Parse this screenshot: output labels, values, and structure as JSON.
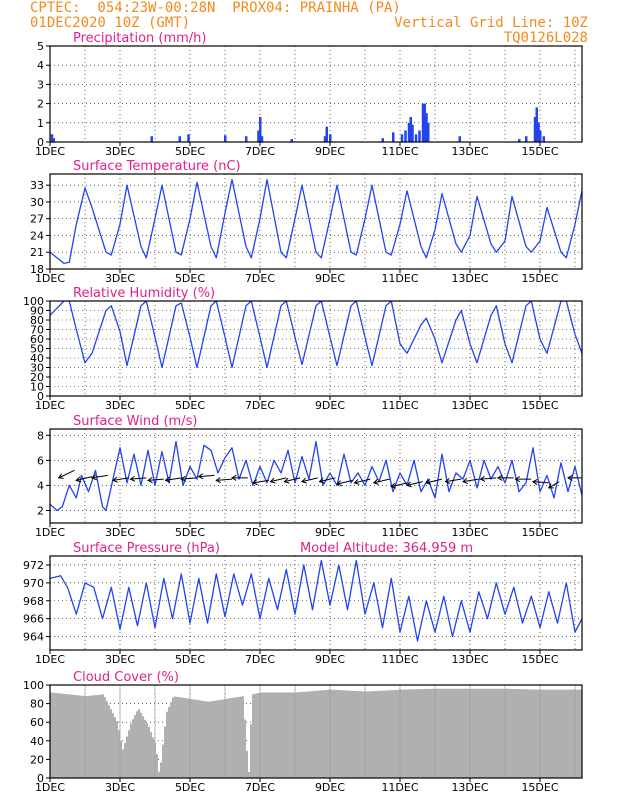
{
  "header": {
    "line1_left": "CPTEC:  054:23W-00:28N  PROX04: PRAINHA (PA)",
    "line2_left": "01DEC2020 10Z (GMT)",
    "line2_right": "Vertical Grid Line: 10Z",
    "line3_right": "TQ0126L028"
  },
  "colors": {
    "header": "#f08a1e",
    "title": "#e0218a",
    "series": "#2244ee",
    "cloud": "#b0b0b0",
    "day_line": "#999999"
  },
  "chart_data": [
    {
      "type": "bar",
      "title": "Precipitation (mm/h)",
      "ylim": [
        0,
        5
      ],
      "yticks": [
        0,
        1,
        2,
        3,
        4,
        5
      ],
      "xticks": [
        "1DEC",
        "3DEC",
        "5DEC",
        "7DEC",
        "9DEC",
        "11DEC",
        "13DEC",
        "15DEC"
      ],
      "x_unit": "day",
      "x_range": [
        1,
        16.2
      ],
      "bars": [
        {
          "x": 1.05,
          "v": 0.4
        },
        {
          "x": 1.1,
          "v": 0.2
        },
        {
          "x": 3.9,
          "v": 0.3
        },
        {
          "x": 4.7,
          "v": 0.3
        },
        {
          "x": 4.95,
          "v": 0.4
        },
        {
          "x": 6.0,
          "v": 0.35
        },
        {
          "x": 6.6,
          "v": 0.3
        },
        {
          "x": 6.95,
          "v": 0.6
        },
        {
          "x": 7.0,
          "v": 1.3
        },
        {
          "x": 7.05,
          "v": 0.3
        },
        {
          "x": 7.9,
          "v": 0.15
        },
        {
          "x": 8.85,
          "v": 0.3
        },
        {
          "x": 8.9,
          "v": 0.8
        },
        {
          "x": 9.0,
          "v": 0.4
        },
        {
          "x": 10.5,
          "v": 0.2
        },
        {
          "x": 10.8,
          "v": 0.5
        },
        {
          "x": 11.05,
          "v": 0.4
        },
        {
          "x": 11.15,
          "v": 0.6
        },
        {
          "x": 11.25,
          "v": 1.0
        },
        {
          "x": 11.3,
          "v": 1.3
        },
        {
          "x": 11.35,
          "v": 0.9
        },
        {
          "x": 11.45,
          "v": 0.4
        },
        {
          "x": 11.55,
          "v": 0.6
        },
        {
          "x": 11.65,
          "v": 2.0
        },
        {
          "x": 11.7,
          "v": 2.0
        },
        {
          "x": 11.75,
          "v": 1.5
        },
        {
          "x": 11.8,
          "v": 1.0
        },
        {
          "x": 12.7,
          "v": 0.3
        },
        {
          "x": 14.4,
          "v": 0.15
        },
        {
          "x": 14.6,
          "v": 0.3
        },
        {
          "x": 14.85,
          "v": 1.3
        },
        {
          "x": 14.9,
          "v": 1.8
        },
        {
          "x": 14.95,
          "v": 1.0
        },
        {
          "x": 15.0,
          "v": 0.6
        },
        {
          "x": 15.1,
          "v": 0.3
        }
      ]
    },
    {
      "type": "line",
      "title": "Surface Temperature (nC)",
      "ylim": [
        18,
        35
      ],
      "yticks": [
        18,
        21,
        24,
        27,
        30,
        33
      ],
      "xticks": [
        "1DEC",
        "3DEC",
        "5DEC",
        "7DEC",
        "9DEC",
        "11DEC",
        "13DEC",
        "15DEC"
      ],
      "x_unit": "day",
      "x_range": [
        1,
        16.2
      ],
      "x": [
        1.0,
        1.4,
        1.55,
        1.75,
        2.0,
        2.2,
        2.6,
        2.75,
        3.0,
        3.2,
        3.6,
        3.75,
        4.0,
        4.2,
        4.6,
        4.75,
        5.0,
        5.2,
        5.6,
        5.75,
        6.0,
        6.2,
        6.6,
        6.75,
        7.0,
        7.2,
        7.6,
        7.75,
        8.0,
        8.2,
        8.6,
        8.75,
        9.0,
        9.2,
        9.6,
        9.75,
        10.0,
        10.2,
        10.6,
        10.75,
        11.0,
        11.2,
        11.6,
        11.75,
        12.0,
        12.2,
        12.6,
        12.75,
        13.0,
        13.2,
        13.6,
        13.75,
        14.0,
        14.2,
        14.6,
        14.75,
        15.0,
        15.2,
        15.6,
        15.75,
        16.0,
        16.2
      ],
      "y": [
        21,
        19,
        19.2,
        26,
        32.5,
        29,
        21,
        20.5,
        26,
        33,
        22,
        20,
        27,
        33,
        21,
        20.5,
        27,
        33.5,
        22,
        20,
        28,
        34,
        22,
        20,
        27,
        34,
        21,
        20,
        27,
        33,
        21,
        20,
        27,
        33,
        21,
        20.5,
        27,
        33,
        21,
        20.5,
        26,
        32,
        22,
        20,
        25,
        31.5,
        22.5,
        21,
        24,
        31,
        22.5,
        21,
        23,
        31,
        22,
        21,
        23,
        29,
        21,
        20,
        26,
        32
      ]
    },
    {
      "type": "line",
      "title": "Relative Humidity (%)",
      "ylim": [
        0,
        100
      ],
      "yticks": [
        0,
        10,
        20,
        30,
        40,
        50,
        60,
        70,
        80,
        90,
        100
      ],
      "xticks": [
        "1DEC",
        "3DEC",
        "5DEC",
        "7DEC",
        "9DEC",
        "11DEC",
        "13DEC",
        "15DEC"
      ],
      "x_unit": "day",
      "x_range": [
        1,
        16.2
      ],
      "x": [
        1.0,
        1.4,
        1.55,
        1.75,
        2.0,
        2.2,
        2.6,
        2.75,
        3.0,
        3.2,
        3.6,
        3.75,
        4.0,
        4.2,
        4.6,
        4.75,
        5.0,
        5.2,
        5.6,
        5.75,
        6.0,
        6.2,
        6.6,
        6.75,
        7.0,
        7.2,
        7.6,
        7.75,
        8.0,
        8.2,
        8.6,
        8.75,
        9.0,
        9.2,
        9.6,
        9.75,
        10.0,
        10.2,
        10.6,
        10.75,
        11.0,
        11.2,
        11.6,
        11.75,
        12.0,
        12.2,
        12.6,
        12.75,
        13.0,
        13.2,
        13.6,
        13.75,
        14.0,
        14.2,
        14.6,
        14.75,
        15.0,
        15.2,
        15.6,
        15.75,
        16.0,
        16.2
      ],
      "y": [
        85,
        100,
        100,
        70,
        35,
        45,
        90,
        95,
        68,
        32,
        95,
        100,
        62,
        30,
        95,
        98,
        62,
        30,
        95,
        100,
        62,
        30,
        95,
        100,
        62,
        30,
        95,
        100,
        62,
        33,
        95,
        100,
        62,
        32,
        95,
        100,
        62,
        32,
        95,
        100,
        55,
        45,
        75,
        82,
        60,
        35,
        80,
        90,
        55,
        35,
        85,
        95,
        55,
        35,
        95,
        100,
        60,
        45,
        100,
        100,
        65,
        45
      ]
    },
    {
      "type": "line",
      "title": "Surface Wind (m/s)",
      "ylim": [
        1,
        8.5
      ],
      "yticks": [
        2,
        4,
        6,
        8
      ],
      "xticks": [
        "1DEC",
        "3DEC",
        "5DEC",
        "7DEC",
        "9DEC",
        "11DEC",
        "13DEC",
        "15DEC"
      ],
      "x_unit": "day",
      "x_range": [
        1,
        16.2
      ],
      "x": [
        1.0,
        1.2,
        1.35,
        1.55,
        1.75,
        1.9,
        2.1,
        2.3,
        2.5,
        2.6,
        2.8,
        3.0,
        3.2,
        3.4,
        3.6,
        3.8,
        4.0,
        4.2,
        4.4,
        4.6,
        4.8,
        5.0,
        5.2,
        5.4,
        5.6,
        5.8,
        6.0,
        6.2,
        6.4,
        6.6,
        6.8,
        7.0,
        7.2,
        7.4,
        7.6,
        7.8,
        8.0,
        8.2,
        8.4,
        8.6,
        8.8,
        9.0,
        9.2,
        9.4,
        9.6,
        9.8,
        10.0,
        10.2,
        10.4,
        10.6,
        10.8,
        11.0,
        11.2,
        11.4,
        11.6,
        11.8,
        12.0,
        12.2,
        12.4,
        12.6,
        12.8,
        13.0,
        13.2,
        13.4,
        13.6,
        13.8,
        14.0,
        14.2,
        14.4,
        14.6,
        14.8,
        15.0,
        15.2,
        15.4,
        15.6,
        15.8,
        16.0,
        16.2
      ],
      "y": [
        2.5,
        2.0,
        2.3,
        4.0,
        3.0,
        4.8,
        3.5,
        5.2,
        2.3,
        2.0,
        4.5,
        7.0,
        4.2,
        6.5,
        4.0,
        6.8,
        4.0,
        6.7,
        4.2,
        7.5,
        4.0,
        5.5,
        4.5,
        7.2,
        6.8,
        5.0,
        6.2,
        7.0,
        4.5,
        6.0,
        4.0,
        5.5,
        4.2,
        6.0,
        5.0,
        6.8,
        4.2,
        6.3,
        4.5,
        7.5,
        4.0,
        5.0,
        4.0,
        6.5,
        4.2,
        5.0,
        4.0,
        5.5,
        4.3,
        6.0,
        3.5,
        5.0,
        4.0,
        6.0,
        3.5,
        4.5,
        3.0,
        6.5,
        3.5,
        5.0,
        4.5,
        6.0,
        3.8,
        6.0,
        4.5,
        5.5,
        4.2,
        6.0,
        3.5,
        4.2,
        7.0,
        3.5,
        4.8,
        3.0,
        5.8,
        3.5,
        5.5,
        3.2
      ],
      "arrows": [
        {
          "x": 1.25,
          "y": 4.6,
          "dx": 0.45,
          "dy": 0.6
        },
        {
          "x": 1.75,
          "y": 4.4,
          "dx": 0.45,
          "dy": 0.3
        },
        {
          "x": 2.2,
          "y": 4.6,
          "dx": 0.45,
          "dy": 0.2
        },
        {
          "x": 2.8,
          "y": 4.4,
          "dx": 0.45,
          "dy": 0.2
        },
        {
          "x": 3.3,
          "y": 4.5,
          "dx": 0.45,
          "dy": 0.1
        },
        {
          "x": 3.8,
          "y": 4.4,
          "dx": 0.45,
          "dy": 0.1
        },
        {
          "x": 4.3,
          "y": 4.4,
          "dx": 0.45,
          "dy": 0.2
        },
        {
          "x": 4.75,
          "y": 4.5,
          "dx": 0.45,
          "dy": 0.1
        },
        {
          "x": 5.25,
          "y": 4.7,
          "dx": 0.45,
          "dy": 0.1
        },
        {
          "x": 5.75,
          "y": 4.4,
          "dx": 0.45,
          "dy": 0.1
        },
        {
          "x": 6.2,
          "y": 4.6,
          "dx": 0.45,
          "dy": 0.0
        },
        {
          "x": 6.8,
          "y": 4.2,
          "dx": 0.45,
          "dy": 0.2
        },
        {
          "x": 7.3,
          "y": 4.3,
          "dx": 0.45,
          "dy": 0.3
        },
        {
          "x": 7.7,
          "y": 4.3,
          "dx": 0.45,
          "dy": 0.3
        },
        {
          "x": 8.2,
          "y": 4.3,
          "dx": 0.45,
          "dy": 0.3
        },
        {
          "x": 8.7,
          "y": 4.3,
          "dx": 0.45,
          "dy": 0.3
        },
        {
          "x": 9.2,
          "y": 4.1,
          "dx": 0.45,
          "dy": 0.3
        },
        {
          "x": 9.7,
          "y": 4.2,
          "dx": 0.45,
          "dy": 0.3
        },
        {
          "x": 10.25,
          "y": 4.2,
          "dx": 0.45,
          "dy": 0.3
        },
        {
          "x": 10.75,
          "y": 3.9,
          "dx": 0.45,
          "dy": 0.3
        },
        {
          "x": 11.2,
          "y": 4.0,
          "dx": 0.45,
          "dy": 0.3
        },
        {
          "x": 11.75,
          "y": 4.2,
          "dx": 0.45,
          "dy": 0.3
        },
        {
          "x": 12.3,
          "y": 4.3,
          "dx": 0.45,
          "dy": 0.2
        },
        {
          "x": 12.8,
          "y": 4.3,
          "dx": 0.45,
          "dy": 0.2
        },
        {
          "x": 13.3,
          "y": 4.5,
          "dx": 0.45,
          "dy": 0.1
        },
        {
          "x": 13.8,
          "y": 4.6,
          "dx": 0.45,
          "dy": 0.0
        },
        {
          "x": 14.3,
          "y": 4.5,
          "dx": 0.45,
          "dy": 0.0
        },
        {
          "x": 14.8,
          "y": 4.3,
          "dx": 0.45,
          "dy": -0.1
        },
        {
          "x": 15.25,
          "y": 3.8,
          "dx": 0.3,
          "dy": 0.5
        },
        {
          "x": 15.8,
          "y": 4.6,
          "dx": 0.45,
          "dy": 0.0
        }
      ]
    },
    {
      "type": "line",
      "title": "Surface Pressure (hPa)",
      "subtitle": "Model Altitude: 364.959 m",
      "ylim": [
        962.5,
        973
      ],
      "yticks": [
        964,
        966,
        968,
        970,
        972
      ],
      "xticks": [
        "1DEC",
        "3DEC",
        "5DEC",
        "7DEC",
        "9DEC",
        "11DEC",
        "13DEC",
        "15DEC"
      ],
      "x_unit": "day",
      "x_range": [
        1,
        16.2
      ],
      "x": [
        1.0,
        1.3,
        1.5,
        1.75,
        2.0,
        2.25,
        2.5,
        2.75,
        3.0,
        3.25,
        3.5,
        3.75,
        4.0,
        4.25,
        4.5,
        4.75,
        5.0,
        5.25,
        5.5,
        5.75,
        6.0,
        6.25,
        6.5,
        6.75,
        7.0,
        7.25,
        7.5,
        7.75,
        8.0,
        8.25,
        8.5,
        8.75,
        9.0,
        9.25,
        9.5,
        9.75,
        10.0,
        10.25,
        10.5,
        10.75,
        11.0,
        11.25,
        11.5,
        11.75,
        12.0,
        12.25,
        12.5,
        12.75,
        13.0,
        13.25,
        13.5,
        13.75,
        14.0,
        14.25,
        14.5,
        14.75,
        15.0,
        15.25,
        15.5,
        15.75,
        16.0,
        16.2
      ],
      "y": [
        970.5,
        970.8,
        969.5,
        966.5,
        970.0,
        969.5,
        966.0,
        969.5,
        964.8,
        969.5,
        965.2,
        970.0,
        965.0,
        970.5,
        966.0,
        971.0,
        965.5,
        970.5,
        965.5,
        971.0,
        966.2,
        971.0,
        967.5,
        971.0,
        966.0,
        970.5,
        967.0,
        971.5,
        966.5,
        972.0,
        967.0,
        972.5,
        967.5,
        972.0,
        967.0,
        972.5,
        966.5,
        970.0,
        965.0,
        970.5,
        964.5,
        968.5,
        963.5,
        968.0,
        964.5,
        968.5,
        964.0,
        968.0,
        964.5,
        969.0,
        966.0,
        970.0,
        966.5,
        969.5,
        965.5,
        968.5,
        965.0,
        969.0,
        965.5,
        970.0,
        964.5,
        966.0
      ]
    },
    {
      "type": "bar",
      "title": "Cloud Cover (%)",
      "ylim": [
        0,
        100
      ],
      "yticks": [
        0,
        20,
        40,
        60,
        80,
        100
      ],
      "xticks": [
        "1DEC",
        "3DEC",
        "5DEC",
        "7DEC",
        "9DEC",
        "11DEC",
        "13DEC",
        "15DEC"
      ],
      "x_unit": "day",
      "x_range": [
        1,
        16.2
      ],
      "profile_x": [
        1.0,
        1.5,
        2.0,
        2.5,
        2.9,
        3.05,
        3.3,
        3.5,
        3.8,
        4.0,
        4.1,
        4.3,
        4.5,
        5.0,
        5.5,
        6.0,
        6.5,
        6.65,
        6.75,
        7.0,
        8.0,
        9.0,
        10.0,
        11.0,
        12.0,
        13.0,
        14.0,
        15.0,
        16.2
      ],
      "profile_y": [
        92,
        90,
        88,
        90,
        60,
        30,
        60,
        75,
        55,
        35,
        2,
        70,
        88,
        85,
        82,
        85,
        88,
        0,
        90,
        92,
        92,
        95,
        93,
        95,
        96,
        96,
        96,
        95,
        95
      ]
    }
  ]
}
